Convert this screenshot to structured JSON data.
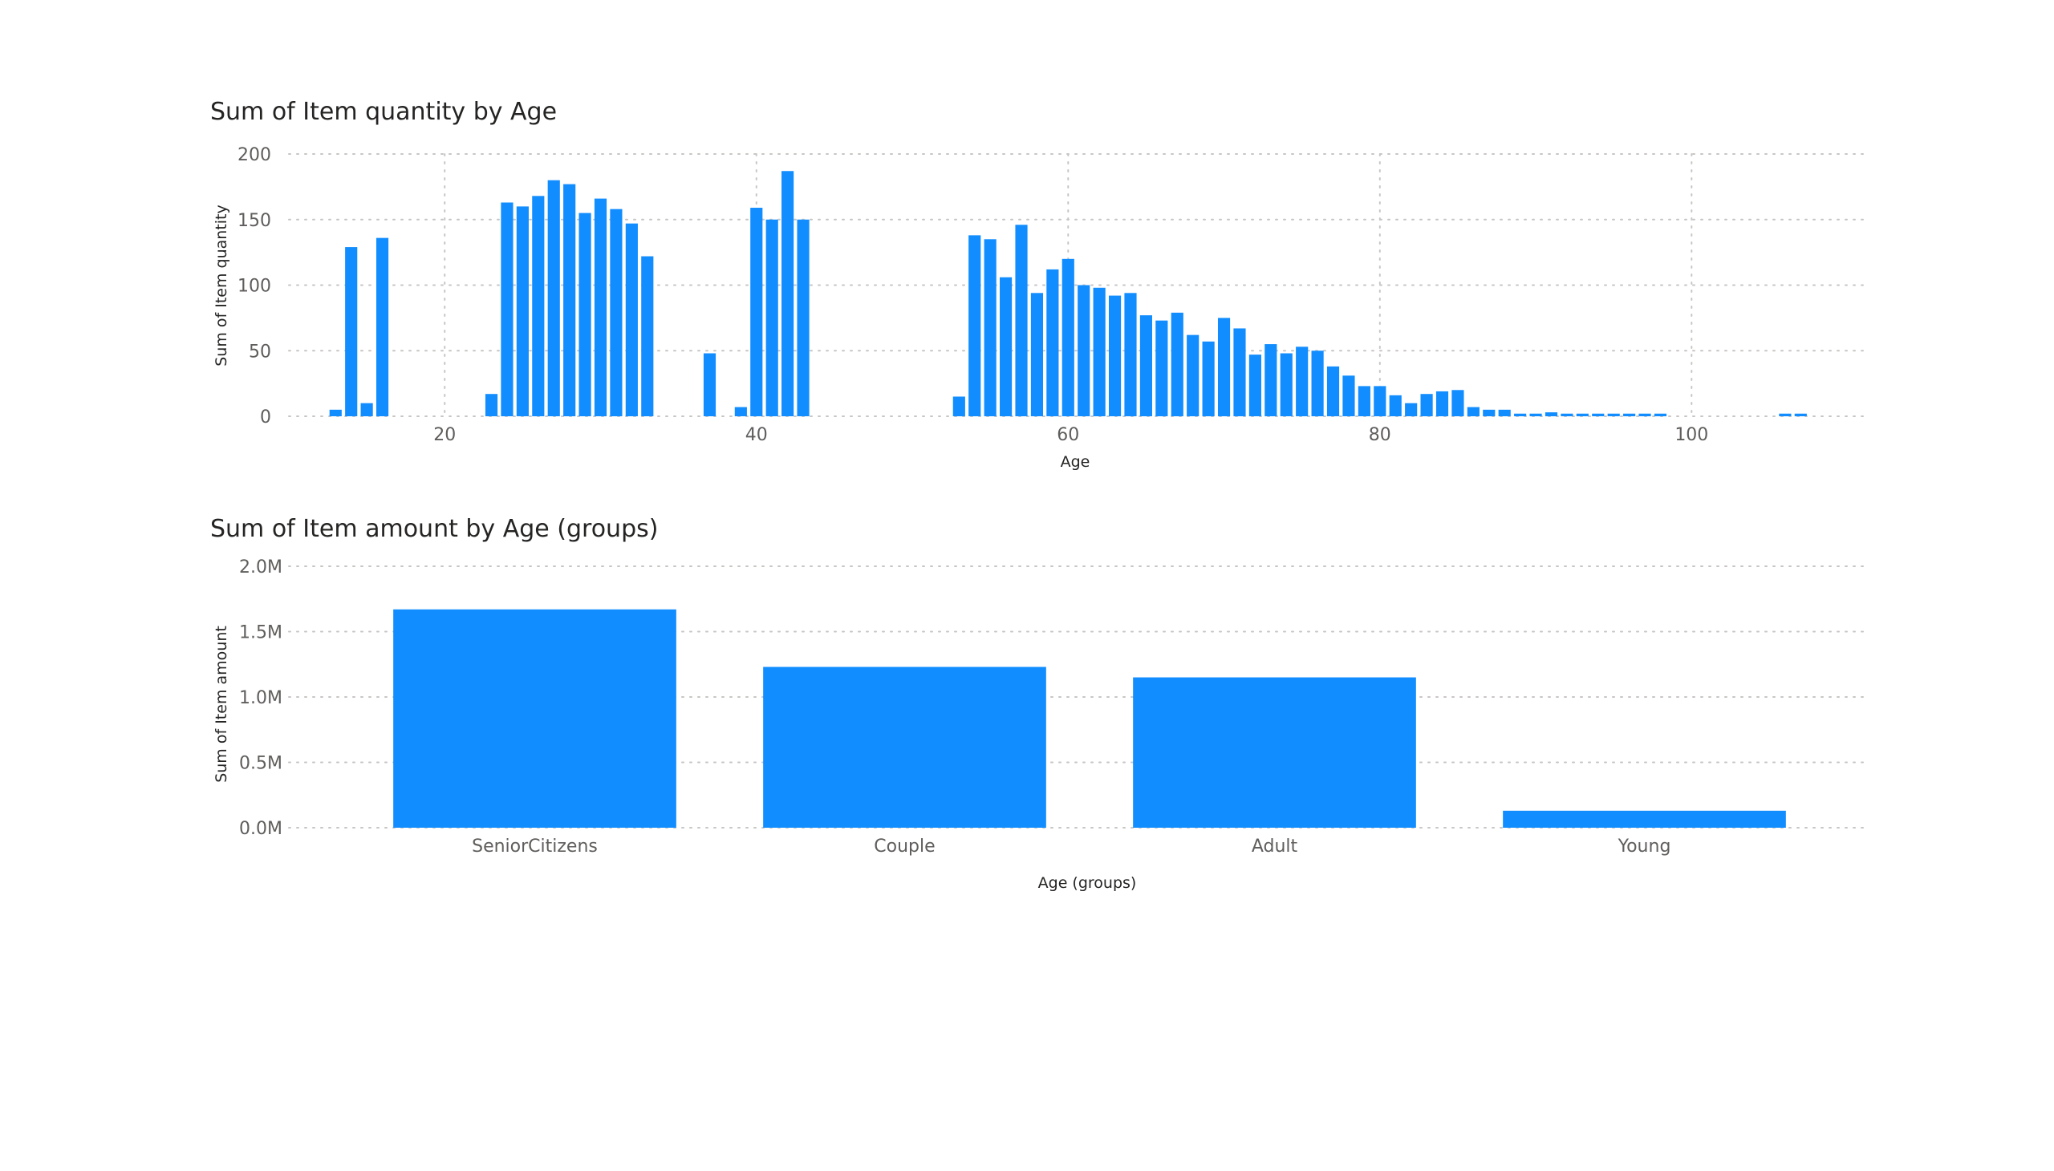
{
  "colors": {
    "bar": "#118DFF",
    "grid": "#C8C6C4",
    "title": "#252423",
    "tick": "#605E5C"
  },
  "chart_data": [
    {
      "type": "bar",
      "title": "Sum of Item quantity by Age",
      "xlabel": "Age",
      "ylabel": "Sum of Item quantity",
      "xlim": [
        10,
        111
      ],
      "ylim": [
        0,
        200
      ],
      "x_ticks": [
        20,
        40,
        60,
        80,
        100
      ],
      "y_ticks": [
        0,
        50,
        100,
        150,
        200
      ],
      "x_grid": true,
      "y_grid": true,
      "x": [
        13,
        14,
        15,
        16,
        23,
        24,
        25,
        26,
        27,
        28,
        29,
        30,
        31,
        32,
        33,
        37,
        39,
        40,
        41,
        42,
        43,
        53,
        54,
        55,
        56,
        57,
        58,
        59,
        60,
        61,
        62,
        63,
        64,
        65,
        66,
        67,
        68,
        69,
        70,
        71,
        72,
        73,
        74,
        75,
        76,
        77,
        78,
        79,
        80,
        81,
        82,
        83,
        84,
        85,
        86,
        87,
        88,
        89,
        90,
        91,
        92,
        93,
        94,
        95,
        96,
        97,
        98,
        106,
        107
      ],
      "values": [
        5,
        129,
        10,
        136,
        17,
        163,
        160,
        168,
        180,
        177,
        155,
        166,
        158,
        147,
        122,
        48,
        7,
        159,
        150,
        187,
        150,
        15,
        138,
        135,
        106,
        146,
        94,
        112,
        120,
        100,
        98,
        92,
        94,
        77,
        73,
        79,
        62,
        57,
        75,
        67,
        47,
        55,
        48,
        53,
        50,
        38,
        31,
        23,
        23,
        16,
        10,
        17,
        19,
        20,
        7,
        5,
        5,
        2,
        2,
        3,
        2,
        2,
        2,
        2,
        2,
        2,
        2,
        2,
        2
      ]
    },
    {
      "type": "bar",
      "title": "Sum of Item amount by Age (groups)",
      "xlabel": "Age (groups)",
      "ylabel": "Sum of Item amount",
      "categories": [
        "SeniorCitizens",
        "Couple",
        "Adult",
        "Young"
      ],
      "values": [
        1.67,
        1.23,
        1.15,
        0.13
      ],
      "unit": "M",
      "ylim": [
        0,
        2.0
      ],
      "y_ticks": [
        "0.0M",
        "0.5M",
        "1.0M",
        "1.5M",
        "2.0M"
      ],
      "y_grid": true
    }
  ]
}
